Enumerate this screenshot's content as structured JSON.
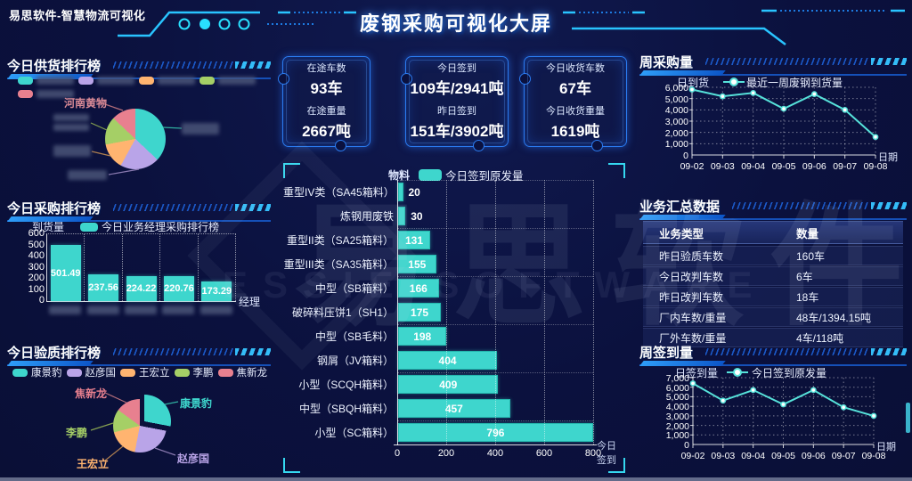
{
  "header": {
    "app_title": "易思软件-智慧物流可视化",
    "main_title": "废钢采购可视化大屏"
  },
  "watermark": {
    "cn": "易思软件",
    "en": "ESSIE SOFTWARE"
  },
  "colors": {
    "background": "#0b113e",
    "accent_blue": "#2e9df8",
    "accent_cyan": "#35d8f0",
    "teal": "#3ed6cd",
    "purple": "#b9a4e8",
    "orange": "#ffb470",
    "green": "#a5cf66",
    "red": "#e8808f",
    "line": "#56e2da"
  },
  "panels": {
    "supply": {
      "title": "今日供货排行榜",
      "visible_callout": "河南黄物"
    },
    "purchase": {
      "title": "今日采购排行榜",
      "y_name": "到货量",
      "x_name": "经理",
      "legend": "今日业务经理采购排行榜"
    },
    "quality": {
      "title": "今日验质排行榜"
    },
    "material": {
      "y_name": "物料",
      "legend": "今日签到原发量",
      "x_name": "今日签到"
    },
    "weekly_purchase": {
      "title": "周采购量",
      "y_name": "日到货",
      "x_name": "日期",
      "legend": "最近一周废钢到货量"
    },
    "summary": {
      "title": "业务汇总数据",
      "columns": [
        "业务类型",
        "数量"
      ],
      "rows": [
        [
          "昨日验质车数",
          "160车"
        ],
        [
          "今日改判车数",
          "6车"
        ],
        [
          "昨日改判车数",
          "18车"
        ],
        [
          "厂内车数/重量",
          "48车/1394.15吨"
        ],
        [
          "厂外车数/重量",
          "4车/118吨"
        ]
      ]
    },
    "weekly_signin": {
      "title": "周签到量",
      "y_name": "日签到量",
      "x_name": "日期",
      "legend": "今日签到原发量"
    }
  },
  "cards": [
    {
      "label1": "在途车数",
      "value1": "93车",
      "label2": "在途重量",
      "value2": "2667吨"
    },
    {
      "label1": "今日签到",
      "value1": "109车/2941吨",
      "label2": "昨日签到",
      "value2": "151车/3902吨"
    },
    {
      "label1": "今日收货车数",
      "value1": "67车",
      "label2": "今日收货重量",
      "value2": "1619吨"
    }
  ],
  "chart_data": [
    {
      "id": "supply_pie",
      "type": "pie",
      "title": "今日供货排行榜",
      "note": "supplier names blurred in source image; percentages estimated from slice angles",
      "slices": [
        {
          "label": "",
          "blurred": true,
          "color": "#3ed6cd",
          "pct": 37
        },
        {
          "label": "",
          "blurred": true,
          "color": "#b9a4e8",
          "pct": 21
        },
        {
          "label": "",
          "blurred": true,
          "color": "#ffb470",
          "pct": 14
        },
        {
          "label": "",
          "blurred": true,
          "color": "#a5cf66",
          "pct": 15
        },
        {
          "label": "河南黄物",
          "blurred": false,
          "legend_blurred": true,
          "color": "#e8808f",
          "pct": 13
        }
      ]
    },
    {
      "id": "purchase_bar",
      "type": "bar",
      "title": "今日业务经理采购排行榜",
      "categories": [
        "",
        "",
        "",
        "",
        ""
      ],
      "categories_blurred": true,
      "values": [
        501.49,
        237.56,
        224.22,
        220.76,
        173.29
      ],
      "xlabel": "经理",
      "ylabel": "到货量",
      "ylim": [
        0,
        600
      ],
      "ytick_step": 100
    },
    {
      "id": "quality_pie",
      "type": "pie",
      "title": "今日验质排行榜",
      "note": "percentages estimated from slice angles",
      "slices": [
        {
          "label": "康景豹",
          "color": "#3ed6cd",
          "pct": 28,
          "exploded": true
        },
        {
          "label": "赵彦国",
          "color": "#b9a4e8",
          "pct": 25
        },
        {
          "label": "王宏立",
          "color": "#ffb470",
          "pct": 18
        },
        {
          "label": "李鹏",
          "color": "#a5cf66",
          "pct": 14
        },
        {
          "label": "焦新龙",
          "color": "#e8808f",
          "pct": 15
        }
      ]
    },
    {
      "id": "material_hbar",
      "type": "bar",
      "orientation": "horizontal",
      "title": "今日签到原发量",
      "categories": [
        "重型IV类（SA45箱料）",
        "炼钢用废铁",
        "重型II类（SA25箱料）",
        "重型III类（SA35箱料）",
        "中型（SB箱料）",
        "破碎料压饼1（SH1）",
        "中型（SB毛料）",
        "钢屑（JV箱料）",
        "小型（SCQH箱料）",
        "中型（SBQH箱料）",
        "小型（SC箱料）"
      ],
      "values": [
        20,
        30,
        131,
        155,
        166,
        175,
        198,
        404,
        409,
        457,
        796
      ],
      "xlabel": "今日签到",
      "ylabel": "物料",
      "xlim": [
        0,
        800
      ],
      "xticks": [
        0,
        200,
        400,
        600,
        800
      ]
    },
    {
      "id": "weekly_purchase_line",
      "type": "line",
      "title": "周采购量",
      "series_name": "最近一周废钢到货量",
      "x": [
        "09-02",
        "09-03",
        "09-04",
        "09-05",
        "09-06",
        "09-07",
        "09-08"
      ],
      "values": [
        5800,
        5200,
        5500,
        4100,
        5400,
        4000,
        1600
      ],
      "xlabel": "日期",
      "ylabel": "日到货",
      "ylim": [
        0,
        6000
      ],
      "ytick_step": 1000
    },
    {
      "id": "weekly_signin_line",
      "type": "line",
      "title": "周签到量",
      "series_name": "今日签到原发量",
      "x": [
        "09-02",
        "09-03",
        "09-04",
        "09-05",
        "09-06",
        "09-07",
        "09-08"
      ],
      "values": [
        6400,
        4600,
        5700,
        4200,
        5700,
        3900,
        3000
      ],
      "xlabel": "日期",
      "ylabel": "日签到量",
      "ylim": [
        0,
        7000
      ],
      "ytick_step": 1000
    }
  ]
}
